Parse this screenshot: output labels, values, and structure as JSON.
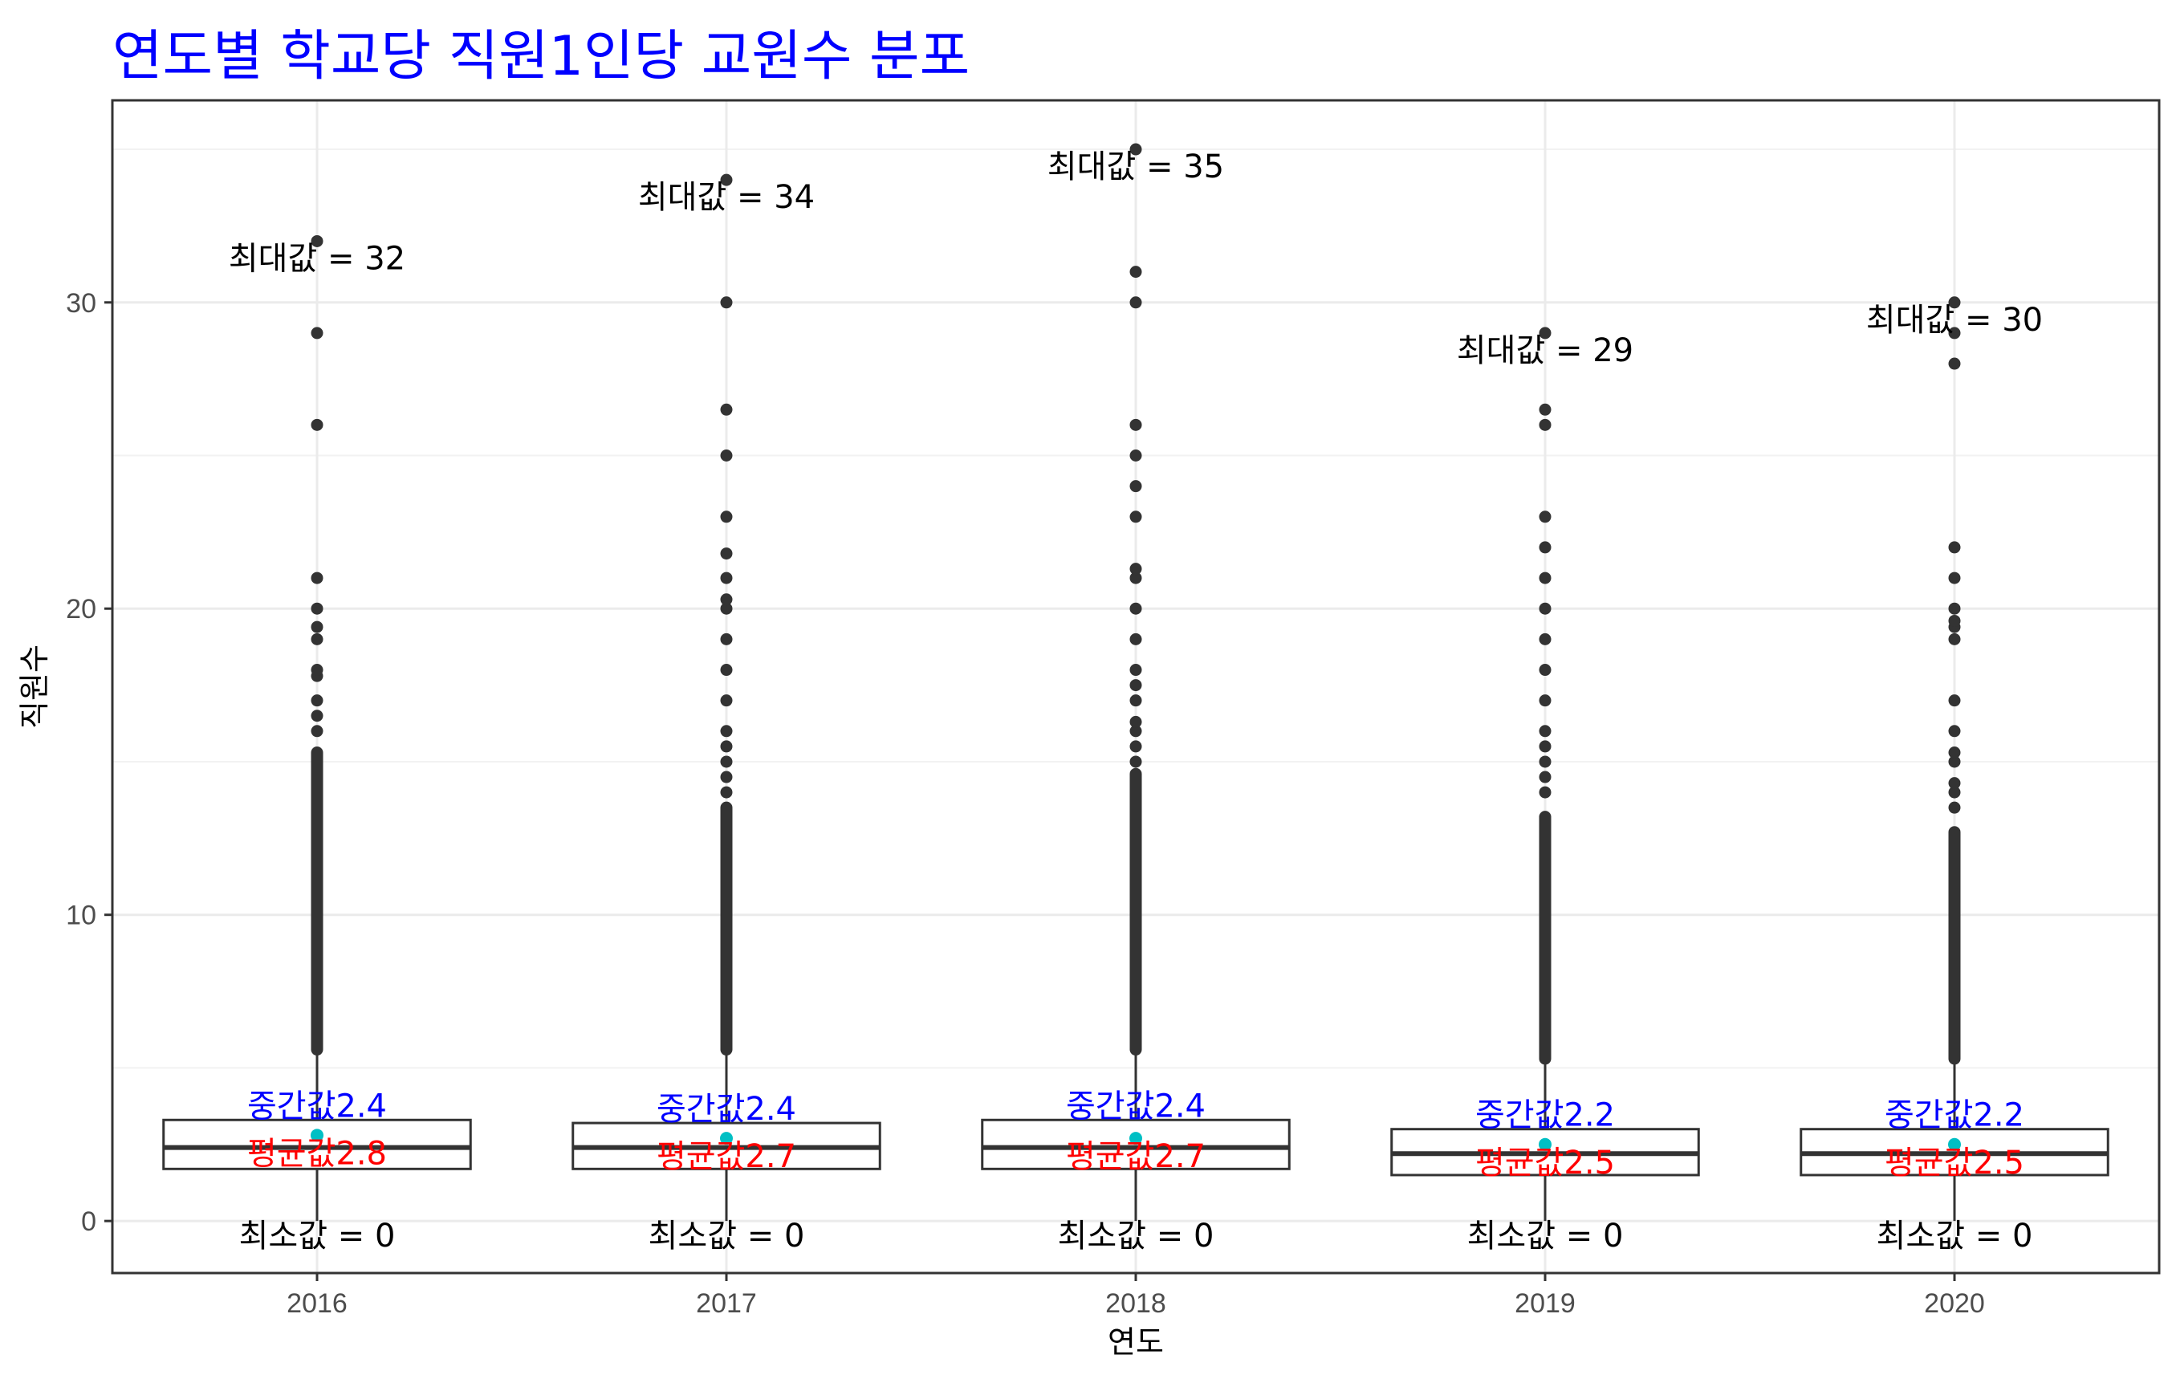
{
  "chart_data": {
    "type": "boxplot",
    "title": "연도별 학교당 직원1인당 교원수 분포",
    "xlabel": "연도",
    "ylabel": "직원수",
    "ylim": [
      -1.7,
      36.6
    ],
    "y_ticks": [
      0,
      10,
      20,
      30
    ],
    "grid": true,
    "categories": [
      "2016",
      "2017",
      "2018",
      "2019",
      "2020"
    ],
    "colors": {
      "title": "#0000ff",
      "median_label": "#0000ff",
      "mean_label": "#ff0000",
      "mean_point": "#00bfc4",
      "points": "#333333",
      "box": "#333333"
    },
    "max_prefix": "최대값 = ",
    "min_prefix": "최소값 = ",
    "median_prefix": "중간값",
    "mean_prefix": "평균값",
    "series": [
      {
        "year": "2016",
        "q1": 1.7,
        "median": 2.4,
        "q3": 3.3,
        "whisker_low": 0,
        "whisker_high": 5.6,
        "mean": 2.8,
        "min": 0,
        "max": 32,
        "max_label": "32",
        "min_label": "0",
        "median_label": "2.4",
        "mean_label": "2.8",
        "outlier_dense_range": [
          5.6,
          15.3
        ],
        "outliers": [
          16,
          16.5,
          17,
          17.8,
          18,
          19,
          19.4,
          20,
          21,
          26,
          29,
          32
        ]
      },
      {
        "year": "2017",
        "q1": 1.7,
        "median": 2.4,
        "q3": 3.2,
        "whisker_low": 0,
        "whisker_high": 5.6,
        "mean": 2.7,
        "min": 0,
        "max": 34,
        "max_label": "34",
        "min_label": "0",
        "median_label": "2.4",
        "mean_label": "2.7",
        "outlier_dense_range": [
          5.6,
          13.5
        ],
        "outliers": [
          14,
          14.5,
          15,
          15.5,
          16,
          17,
          18,
          19,
          20,
          20.3,
          21,
          21.8,
          23,
          25,
          26.5,
          30,
          34
        ]
      },
      {
        "year": "2018",
        "q1": 1.7,
        "median": 2.4,
        "q3": 3.3,
        "whisker_low": 0,
        "whisker_high": 5.6,
        "mean": 2.7,
        "min": 0,
        "max": 35,
        "max_label": "35",
        "min_label": "0",
        "median_label": "2.4",
        "mean_label": "2.7",
        "outlier_dense_range": [
          5.6,
          14.6
        ],
        "outliers": [
          15,
          15.5,
          16,
          16.3,
          17,
          17.5,
          18,
          19,
          20,
          21,
          21.3,
          23,
          24,
          25,
          26,
          30,
          31,
          35
        ]
      },
      {
        "year": "2019",
        "q1": 1.5,
        "median": 2.2,
        "q3": 3.0,
        "whisker_low": 0,
        "whisker_high": 5.3,
        "mean": 2.5,
        "min": 0,
        "max": 29,
        "max_label": "29",
        "min_label": "0",
        "median_label": "2.2",
        "mean_label": "2.5",
        "outlier_dense_range": [
          5.3,
          13.2
        ],
        "outliers": [
          14,
          14.5,
          15,
          15.5,
          16,
          17,
          18,
          19,
          20,
          21,
          22,
          23,
          26,
          26.5,
          29
        ]
      },
      {
        "year": "2020",
        "q1": 1.5,
        "median": 2.2,
        "q3": 3.0,
        "whisker_low": 0,
        "whisker_high": 5.3,
        "mean": 2.5,
        "min": 0,
        "max": 30,
        "max_label": "30",
        "min_label": "0",
        "median_label": "2.2",
        "mean_label": "2.5",
        "outlier_dense_range": [
          5.3,
          12.7
        ],
        "outliers": [
          13.5,
          14,
          14.3,
          15,
          15.3,
          16,
          17,
          19,
          19.4,
          19.6,
          20,
          21,
          22,
          28,
          29,
          30
        ]
      }
    ]
  }
}
